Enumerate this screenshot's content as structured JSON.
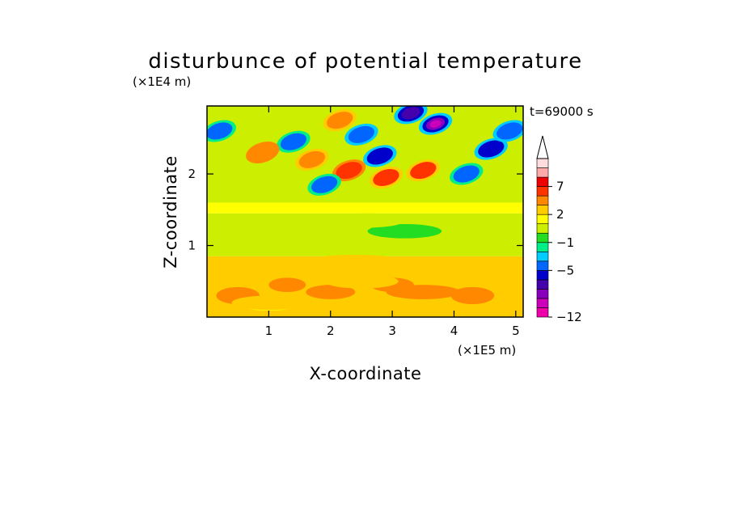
{
  "chart_data": {
    "type": "heatmap",
    "title": "disturbunce of potential temperature",
    "time_label": "t=69000 s",
    "xlabel": "X-coordinate",
    "ylabel": "Z-coordinate",
    "x_unit": "(×1E5 m)",
    "y_unit": "(×1E4 m)",
    "x_range": [
      0,
      5.12
    ],
    "y_range": [
      0,
      2.95
    ],
    "x_ticks": [
      "1",
      "2",
      "3",
      "4",
      "5"
    ],
    "x_tick_values": [
      1,
      2,
      3,
      4,
      5
    ],
    "y_ticks": [
      "1",
      "2"
    ],
    "y_tick_values": [
      1,
      2
    ],
    "colorbar": {
      "levels": [
        -12,
        -10,
        -8,
        -6.5,
        -5,
        -3.5,
        -2,
        -1,
        0,
        1,
        2,
        3,
        5,
        7,
        9,
        11
      ],
      "tick_labels": [
        "7",
        "2",
        "−1",
        "−5",
        "−12"
      ],
      "tick_values": [
        7,
        2,
        -1,
        -5,
        -12
      ],
      "extend": "max",
      "colors": [
        "#ee00aa",
        "#cc00bb",
        "#8800bb",
        "#4400aa",
        "#0000cc",
        "#0066ff",
        "#00ccff",
        "#00ee88",
        "#22dd22",
        "#ccee00",
        "#ffff00",
        "#ffcc00",
        "#ff8800",
        "#ff3300",
        "#ee0000",
        "#ffaaaa",
        "#ffdddd"
      ]
    },
    "features": [
      {
        "x": 3.3,
        "z": 2.85,
        "value": -8
      },
      {
        "x": 3.7,
        "z": 2.7,
        "value": -11
      },
      {
        "x": 2.8,
        "z": 2.25,
        "value": -6
      },
      {
        "x": 2.15,
        "z": 2.75,
        "value": 4
      },
      {
        "x": 2.9,
        "z": 1.95,
        "value": 5
      },
      {
        "x": 3.5,
        "z": 2.05,
        "value": 5
      },
      {
        "x": 2.3,
        "z": 2.05,
        "value": 6
      },
      {
        "x": 1.9,
        "z": 1.85,
        "value": -4
      },
      {
        "x": 2.5,
        "z": 2.55,
        "value": -5
      },
      {
        "x": 1.4,
        "z": 2.45,
        "value": -4
      },
      {
        "x": 4.2,
        "z": 2.0,
        "value": -4
      },
      {
        "x": 4.6,
        "z": 2.35,
        "value": -6
      },
      {
        "x": 0.9,
        "z": 2.3,
        "value": 3
      },
      {
        "x": 0.2,
        "z": 2.6,
        "value": -4
      },
      {
        "x": 4.9,
        "z": 2.6,
        "value": -5
      },
      {
        "x": 1.7,
        "z": 2.2,
        "value": 4
      },
      {
        "x": 3.2,
        "z": 1.2,
        "value": -1
      },
      {
        "x": 2.6,
        "z": 1.35,
        "value": 0
      },
      {
        "x": 0.5,
        "z": 1.0,
        "value": 0
      },
      {
        "x": 2.5,
        "z": 0.5,
        "value": 2
      },
      {
        "x": 3.5,
        "z": 0.35,
        "value": 3
      },
      {
        "x": 1.0,
        "z": 0.2,
        "value": 2
      }
    ]
  }
}
